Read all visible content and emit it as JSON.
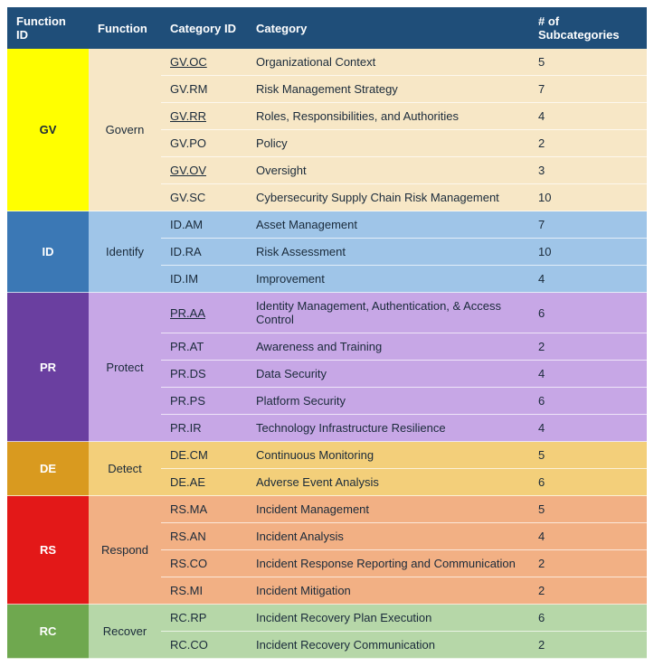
{
  "headers": {
    "function_id": "Function ID",
    "function": "Function",
    "category_id": "Category ID",
    "category": "Category",
    "subcategories": "# of Subcategories"
  },
  "functions": [
    {
      "id": "GV",
      "name": "Govern",
      "id_bg": "#ffff00",
      "id_color": "#1a2a3a",
      "name_bg": "#f7e7c6",
      "row_bg": "#f7e7c6",
      "categories": [
        {
          "id": "GV.OC",
          "name": "Organizational Context",
          "sub": "5",
          "underline": true
        },
        {
          "id": "GV.RM",
          "name": "Risk Management Strategy",
          "sub": "7",
          "underline": false
        },
        {
          "id": "GV.RR",
          "name": "Roles, Responsibilities, and Authorities",
          "sub": "4",
          "underline": true
        },
        {
          "id": "GV.PO",
          "name": "Policy",
          "sub": "2",
          "underline": false
        },
        {
          "id": "GV.OV",
          "name": "Oversight",
          "sub": "3",
          "underline": true
        },
        {
          "id": "GV.SC",
          "name": "Cybersecurity Supply Chain Risk Management",
          "sub": "10",
          "underline": false
        }
      ]
    },
    {
      "id": "ID",
      "name": "Identify",
      "id_bg": "#3b78b5",
      "id_color": "#ffffff",
      "name_bg": "#9fc5e8",
      "row_bg": "#9fc5e8",
      "categories": [
        {
          "id": "ID.AM",
          "name": "Asset Management",
          "sub": "7",
          "underline": false
        },
        {
          "id": "ID.RA",
          "name": "Risk Assessment",
          "sub": "10",
          "underline": false
        },
        {
          "id": "ID.IM",
          "name": "Improvement",
          "sub": "4",
          "underline": false
        }
      ]
    },
    {
      "id": "PR",
      "name": "Protect",
      "id_bg": "#6a3fa0",
      "id_color": "#ffffff",
      "name_bg": "#c7a7e6",
      "row_bg": "#c7a7e6",
      "categories": [
        {
          "id": "PR.AA",
          "name": "Identity Management, Authentication, & Access Control",
          "sub": "6",
          "underline": true
        },
        {
          "id": "PR.AT",
          "name": "Awareness and Training",
          "sub": "2",
          "underline": false
        },
        {
          "id": "PR.DS",
          "name": "Data Security",
          "sub": "4",
          "underline": false
        },
        {
          "id": "PR.PS",
          "name": "Platform Security",
          "sub": "6",
          "underline": false
        },
        {
          "id": "PR.IR",
          "name": "Technology Infrastructure Resilience",
          "sub": "4",
          "underline": false
        }
      ]
    },
    {
      "id": "DE",
      "name": "Detect",
      "id_bg": "#d99a1f",
      "id_color": "#ffffff",
      "name_bg": "#f3cf7a",
      "row_bg": "#f3cf7a",
      "categories": [
        {
          "id": "DE.CM",
          "name": "Continuous Monitoring",
          "sub": "5",
          "underline": false
        },
        {
          "id": "DE.AE",
          "name": "Adverse Event Analysis",
          "sub": "6",
          "underline": false
        }
      ]
    },
    {
      "id": "RS",
      "name": "Respond",
      "id_bg": "#e31818",
      "id_color": "#ffffff",
      "name_bg": "#f2b084",
      "row_bg": "#f2b084",
      "categories": [
        {
          "id": "RS.MA",
          "name": "Incident Management",
          "sub": "5",
          "underline": false
        },
        {
          "id": "RS.AN",
          "name": "Incident Analysis",
          "sub": "4",
          "underline": false
        },
        {
          "id": "RS.CO",
          "name": "Incident Response Reporting and Communication",
          "sub": "2",
          "underline": false
        },
        {
          "id": "RS.MI",
          "name": "Incident Mitigation",
          "sub": "2",
          "underline": false
        }
      ]
    },
    {
      "id": "RC",
      "name": "Recover",
      "id_bg": "#6fa84f",
      "id_color": "#ffffff",
      "name_bg": "#b6d7a8",
      "row_bg": "#b6d7a8",
      "categories": [
        {
          "id": "RC.RP",
          "name": "Incident Recovery Plan Execution",
          "sub": "6",
          "underline": false
        },
        {
          "id": "RC.CO",
          "name": "Incident Recovery Communication",
          "sub": "2",
          "underline": false
        }
      ]
    }
  ]
}
